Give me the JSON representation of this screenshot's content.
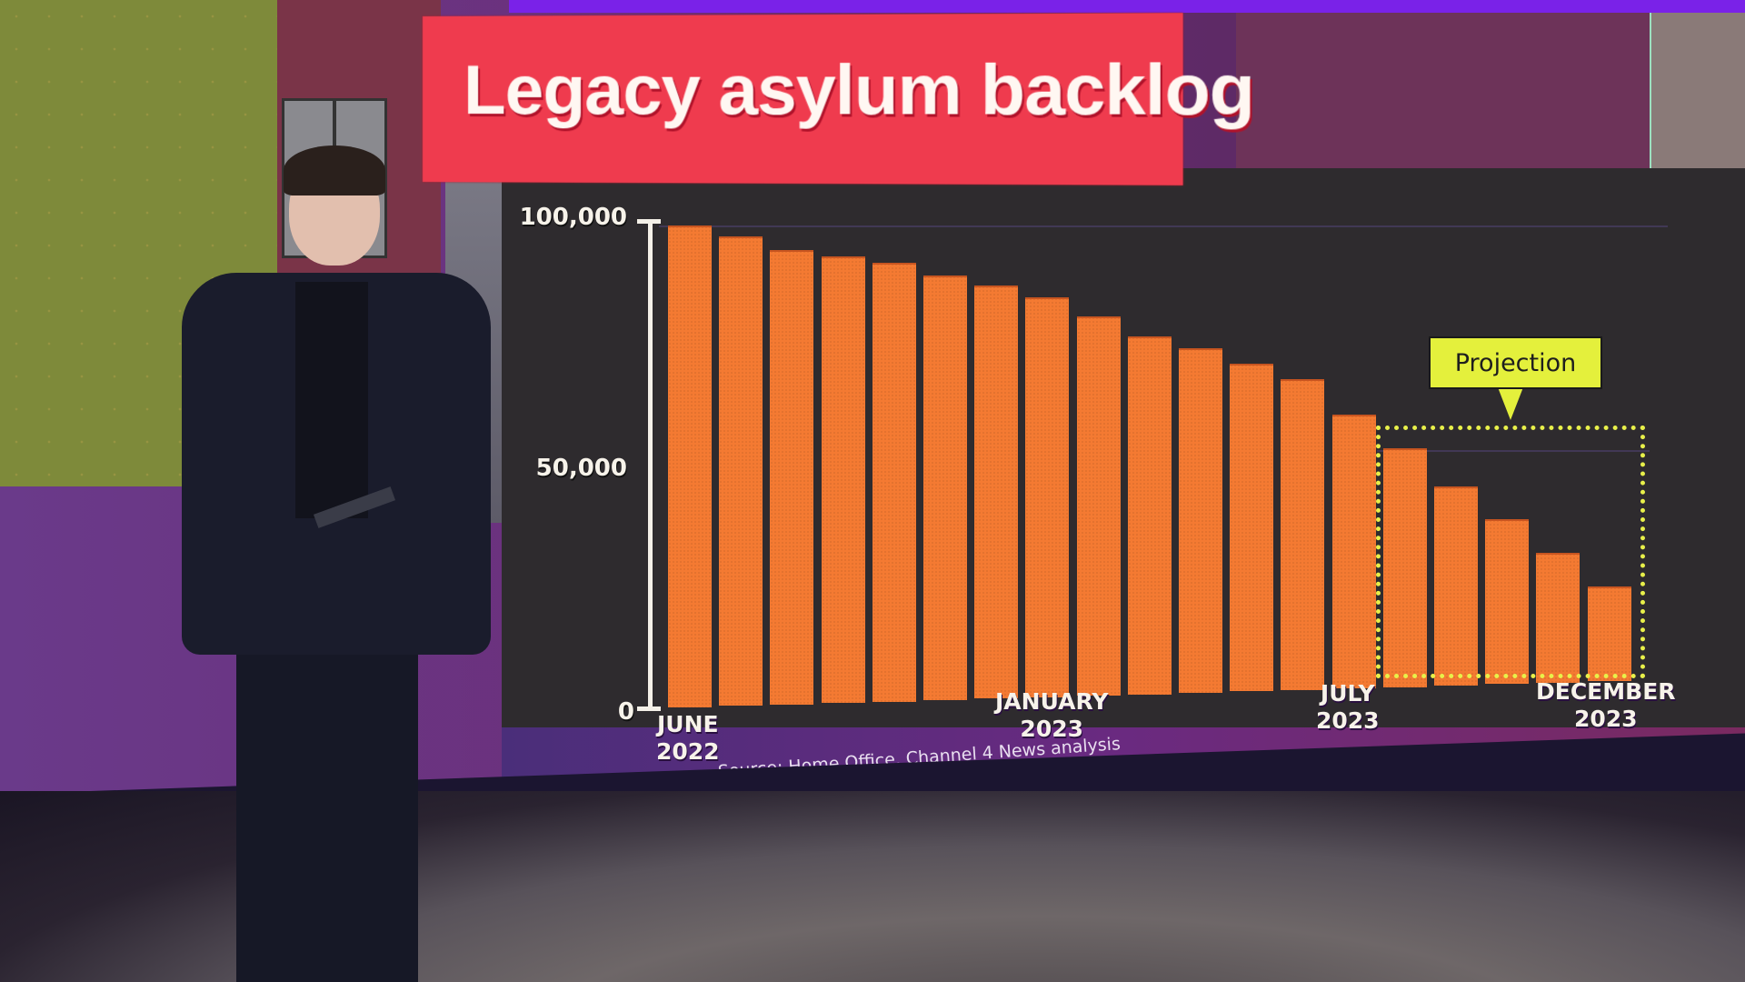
{
  "title": "Legacy asylum backlog",
  "source": "Source: Home Office, Channel 4 News analysis",
  "annotation": {
    "label": "Projection",
    "color": "#e4f03c",
    "applies_to_from_index": 14
  },
  "colors": {
    "title_banner": "#ef3b4e",
    "bar": "#f47a32",
    "panel": "#2e2b2e",
    "projection_outline": "#e8f04a"
  },
  "y_axis": {
    "ticks": [
      "100,000",
      "50,000",
      "0"
    ]
  },
  "x_axis": {
    "labels": [
      {
        "line1": "JUNE",
        "line2": "2022"
      },
      {
        "line1": "JANUARY",
        "line2": "2023"
      },
      {
        "line1": "JULY",
        "line2": "2023"
      },
      {
        "line1": "DECEMBER",
        "line2": "2023"
      }
    ]
  },
  "chart_data": {
    "type": "bar",
    "title": "Legacy asylum backlog",
    "xlabel": "",
    "ylabel": "",
    "ylim": [
      0,
      100000
    ],
    "yticks": [
      0,
      50000,
      100000
    ],
    "ytick_labels": [
      "0",
      "50,000",
      "100,000"
    ],
    "grid": false,
    "legend": null,
    "categories": [
      "Jun 2022",
      "Jul 2022",
      "Aug 2022",
      "Sep 2022",
      "Oct 2022",
      "Nov 2022",
      "Dec 2022",
      "Jan 2023",
      "Feb 2023",
      "Mar 2023",
      "Apr 2023",
      "May 2023",
      "Jun 2023",
      "Jul 2023",
      "Aug 2023",
      "Sep 2023",
      "Oct 2023",
      "Nov 2023",
      "Dec 2023"
    ],
    "x_tick_labels_shown": [
      "JUNE 2022",
      "JANUARY 2023",
      "JULY 2023",
      "DECEMBER 2023"
    ],
    "values": [
      99000,
      96600,
      93400,
      91800,
      90200,
      87200,
      85000,
      82200,
      77900,
      73600,
      70800,
      67400,
      63800,
      56300,
      49000,
      41000,
      34000,
      26700,
      19400
    ],
    "series": [
      {
        "name": "Actual",
        "values": [
          99000,
          96600,
          93400,
          91800,
          90200,
          87200,
          85000,
          82200,
          77900,
          73600,
          70800,
          67400,
          63800,
          56300,
          null,
          null,
          null,
          null,
          null
        ]
      },
      {
        "name": "Projection",
        "values": [
          null,
          null,
          null,
          null,
          null,
          null,
          null,
          null,
          null,
          null,
          null,
          null,
          null,
          null,
          49000,
          41000,
          34000,
          26700,
          19400
        ]
      }
    ],
    "annotations": [
      {
        "text": "Projection",
        "range": [
          "Aug 2023",
          "Dec 2023"
        ]
      }
    ],
    "source": "Source: Home Office, Channel 4 News analysis"
  }
}
